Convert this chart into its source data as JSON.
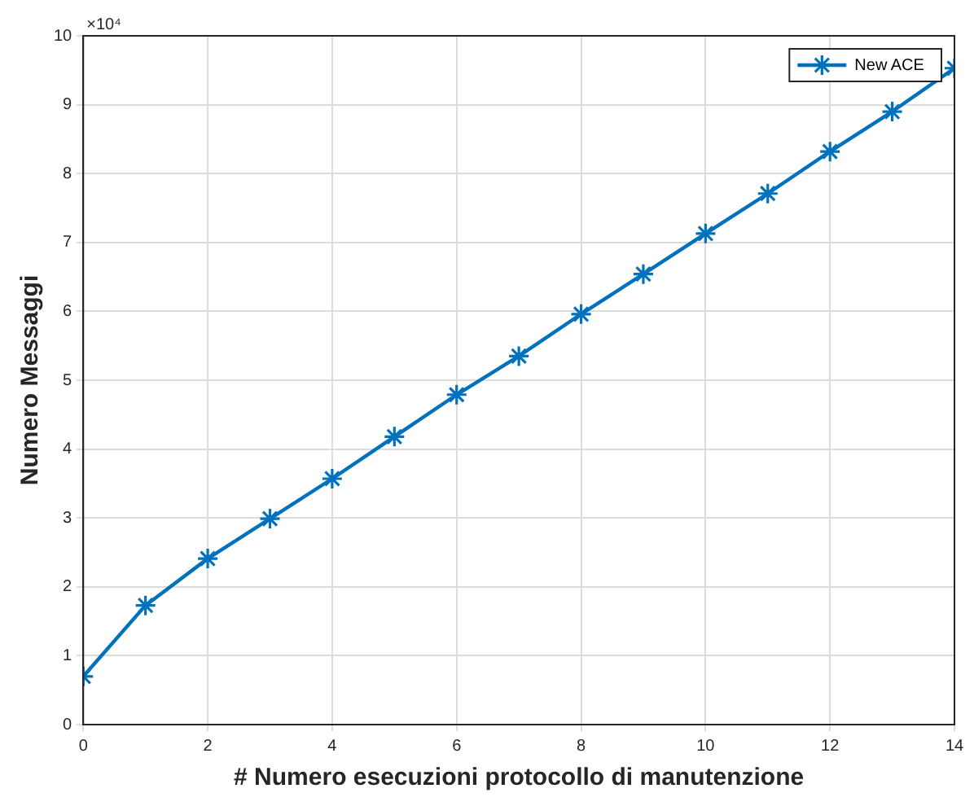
{
  "chart_data": {
    "type": "line",
    "xlabel": "# Numero esecuzioni protocollo di manutenzione",
    "ylabel": "Numero Messaggi",
    "x": [
      0,
      1,
      2,
      3,
      4,
      5,
      6,
      7,
      8,
      9,
      10,
      11,
      12,
      13,
      14
    ],
    "series": [
      {
        "name": "New ACE",
        "color": "#0072bd",
        "values": [
          0.7,
          1.73,
          2.41,
          2.99,
          3.57,
          4.18,
          4.79,
          5.35,
          5.96,
          6.54,
          7.13,
          7.71,
          8.32,
          8.9,
          9.53
        ]
      }
    ],
    "xlim": [
      0,
      14
    ],
    "xticks": [
      0,
      2,
      4,
      6,
      8,
      10,
      12,
      14
    ],
    "ylim": [
      0,
      10
    ],
    "yticks": [
      0,
      1,
      2,
      3,
      4,
      5,
      6,
      7,
      8,
      9,
      10
    ],
    "annotations": [
      "×10⁴"
    ],
    "grid": true,
    "legend": "top right",
    "marker": "cross",
    "line_style": "solid"
  }
}
